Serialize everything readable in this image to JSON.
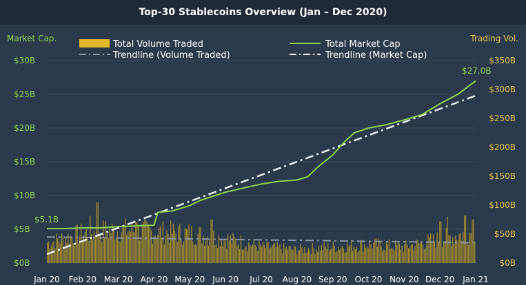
{
  "chart_data": {
    "type": "bar",
    "title": "Top-30 Stablecoins Overview (Jan – Dec 2020)",
    "left_axis_label": "Market Cap.",
    "right_axis_label": "Trading Vol.",
    "left_ticks": [
      "$0B",
      "$5B",
      "$10B",
      "$15B",
      "$20B",
      "$25B",
      "$30B"
    ],
    "right_ticks": [
      "$0B",
      "$50B",
      "$100B",
      "$150B",
      "$200B",
      "$250B",
      "$300B",
      "$350B"
    ],
    "x_ticks": [
      "Jan 20",
      "Feb 20",
      "Mar 20",
      "Apr 20",
      "May 20",
      "Jun 20",
      "Jul 20",
      "Aug 20",
      "Sep 20",
      "Oct 20",
      "Nov 20",
      "Dec 20",
      "Jan 21"
    ],
    "y_left_range": [
      0,
      30
    ],
    "y_right_range": [
      0,
      350
    ],
    "legend": {
      "volume": "Total Volume Traded",
      "market_cap": "Total Market Cap",
      "trend_volume": "Trendline (Volume Traded)",
      "trend_market_cap": "Trendline (Market Cap)"
    },
    "annotations": {
      "start": "$5.1B",
      "end": "$27.0B"
    },
    "series": [
      {
        "name": "Total Market Cap",
        "axis": "left",
        "color": "#8fd14f",
        "x": [
          0,
          0.5,
          1,
          1.5,
          2,
          2.5,
          3,
          3.1,
          3.5,
          4,
          4.3,
          4.6,
          5,
          5.5,
          6,
          6.5,
          7,
          7.3,
          7.6,
          8,
          8.3,
          8.6,
          9,
          9.5,
          10,
          10.5,
          11,
          11.5,
          12
        ],
        "values": [
          5.1,
          5.1,
          5.2,
          5.2,
          5.4,
          5.5,
          5.6,
          7.5,
          7.7,
          8.5,
          9.3,
          9.8,
          10.5,
          11.1,
          11.7,
          12.1,
          12.3,
          12.8,
          14.3,
          16.0,
          17.8,
          19.3,
          20.0,
          20.5,
          21.2,
          22.0,
          23.6,
          25.0,
          27.0
        ]
      },
      {
        "name": "Total Volume Traded",
        "axis": "right",
        "color": "#c8a52a",
        "months": [
          0,
          1,
          2,
          3,
          4,
          5,
          6,
          7,
          8,
          9,
          10,
          11,
          12
        ],
        "monthly_levels": [
          38,
          55,
          62,
          58,
          55,
          45,
          30,
          25,
          30,
          35,
          30,
          45,
          60
        ],
        "peaks": [
          {
            "x": 1.4,
            "value": 105
          },
          {
            "x": 1.2,
            "value": 82
          },
          {
            "x": 4.6,
            "value": 75
          },
          {
            "x": 2.5,
            "value": 70
          },
          {
            "x": 11.2,
            "value": 80
          },
          {
            "x": 11.7,
            "value": 82
          },
          {
            "x": 11.0,
            "value": 72
          },
          {
            "x": 11.9,
            "value": 75
          }
        ]
      },
      {
        "name": "Trendline (Market Cap)",
        "axis": "left",
        "x": [
          0,
          12
        ],
        "values": [
          1.3,
          24.8
        ]
      },
      {
        "name": "Trendline (Volume Traded)",
        "axis": "right",
        "x": [
          0,
          12
        ],
        "values": [
          45,
          35
        ]
      }
    ]
  }
}
